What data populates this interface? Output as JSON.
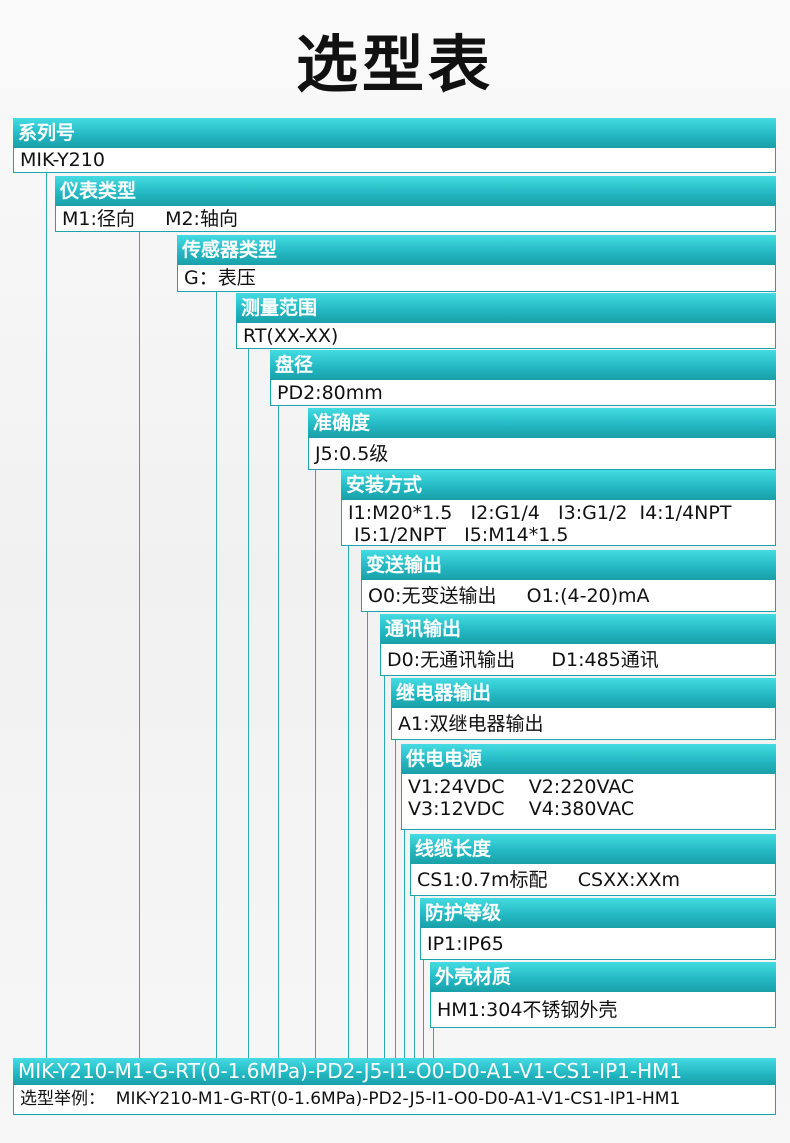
{
  "title": "选型表",
  "accent_color": "#22b6c0",
  "rows": [
    {
      "header": "系列号",
      "lines": [
        "MIK-Y210"
      ]
    },
    {
      "header": "仪表类型",
      "lines": [
        "M1:径向     M2:轴向"
      ]
    },
    {
      "header": "传感器类型",
      "lines": [
        "G：表压"
      ]
    },
    {
      "header": "测量范围",
      "lines": [
        "RT(XX-XX)"
      ]
    },
    {
      "header": "盘径",
      "lines": [
        "PD2:80mm"
      ]
    },
    {
      "header": "准确度",
      "lines": [
        "J5:0.5级"
      ]
    },
    {
      "header": "安装方式",
      "lines": [
        "I1:M20*1.5   I2:G1/4   I3:G1/2  I4:1/4NPT",
        " I5:1/2NPT   I5:M14*1.5"
      ]
    },
    {
      "header": "变送输出",
      "lines": [
        "O0:无变送输出     O1:(4-20)mA"
      ]
    },
    {
      "header": "通讯输出",
      "lines": [
        "D0:无通讯输出      D1:485通讯"
      ]
    },
    {
      "header": "继电器输出",
      "lines": [
        "A1:双继电器输出"
      ]
    },
    {
      "header": "供电电源",
      "lines": [
        "V1:24VDC    V2:220VAC",
        "V3:12VDC    V4:380VAC"
      ]
    },
    {
      "header": "线缆长度",
      "lines": [
        "CS1:0.7m标配     CSXX:XXm"
      ]
    },
    {
      "header": "防护等级",
      "lines": [
        "IP1:IP65"
      ]
    },
    {
      "header": "外壳材质",
      "lines": [
        "HM1:304不锈钢外壳"
      ]
    }
  ],
  "example": {
    "code": "MIK-Y210-M1-G-RT(0-1.6MPa)-PD2-J5-I1-O0-D0-A1-V1-CS1-IP1-HM1",
    "label": "选型举例：  MIK-Y210-M1-G-RT(0-1.6MPa)-PD2-J5-I1-O0-D0-A1-V1-CS1-IP1-HM1"
  }
}
